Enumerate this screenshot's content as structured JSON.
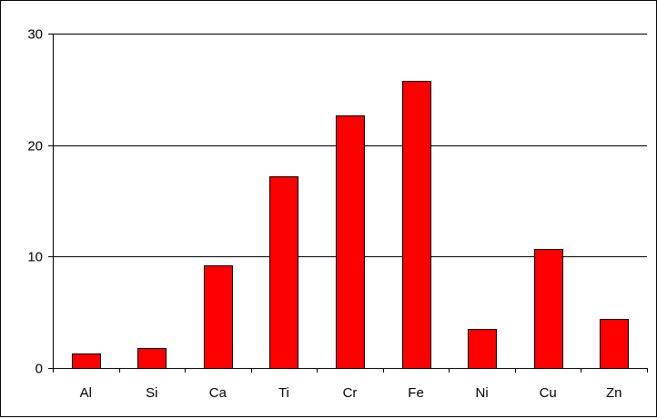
{
  "chart_data": {
    "type": "bar",
    "categories": [
      "Al",
      "Si",
      "Ca",
      "Ti",
      "Cr",
      "Fe",
      "Ni",
      "Cu",
      "Zn"
    ],
    "values": [
      1.3,
      1.8,
      9.2,
      17.2,
      22.7,
      25.8,
      3.5,
      10.7,
      4.4
    ],
    "ylim": [
      0,
      30
    ],
    "yticks": [
      0,
      10,
      20,
      30
    ],
    "grid": true,
    "legend": "none",
    "bar_color": "#ff0000",
    "bar_edge_color": "#000000"
  }
}
